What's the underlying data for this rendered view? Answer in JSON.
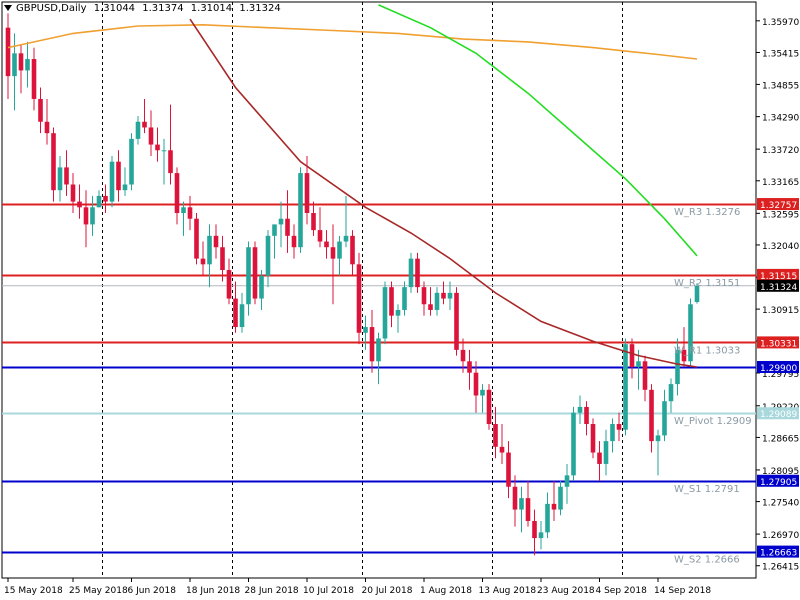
{
  "header": {
    "symbol": "GBPUSD,Daily",
    "ohlc": [
      "1.31044",
      "1.31374",
      "1.31014",
      "1.31324"
    ]
  },
  "chart_data": {
    "type": "candlestick",
    "ylim": [
      1.262,
      1.363
    ],
    "price_ticks": [
      "1.35970",
      "1.35415",
      "1.34855",
      "1.34290",
      "1.33720",
      "1.33165",
      "1.32595",
      "1.32040",
      "1.31475",
      "1.30915",
      "1.30355",
      "1.29795",
      "1.29220",
      "1.28665",
      "1.28095",
      "1.27540",
      "1.26970",
      "1.26415"
    ],
    "date_labels": [
      "15 May 2018",
      "25 May 2018",
      "6 Jun 2018",
      "18 Jun 2018",
      "28 Jun 2018",
      "10 Jul 2018",
      "20 Jul 2018",
      "1 Aug 2018",
      "13 Aug 2018",
      "23 Aug 2018",
      "4 Sep 2018",
      "14 Sep 2018"
    ],
    "date_label_bar": [
      0,
      10,
      19,
      28,
      37,
      46,
      55,
      64,
      73,
      82,
      91,
      100
    ],
    "week_separator_bars": [
      14.5,
      34.5,
      54.5,
      74.5,
      94.5
    ],
    "bull_color": "#26a69a",
    "bear_color": "#dc143c",
    "candles": [
      [
        1.3585,
        1.361,
        1.346,
        1.35
      ],
      [
        1.35,
        1.3575,
        1.344,
        1.354
      ],
      [
        1.354,
        1.3555,
        1.347,
        1.351
      ],
      [
        1.351,
        1.356,
        1.348,
        1.353
      ],
      [
        1.353,
        1.355,
        1.344,
        1.346
      ],
      [
        1.346,
        1.348,
        1.34,
        1.342
      ],
      [
        1.342,
        1.346,
        1.338,
        1.34
      ],
      [
        1.34,
        1.341,
        1.328,
        1.33
      ],
      [
        1.33,
        1.336,
        1.328,
        1.334
      ],
      [
        1.334,
        1.337,
        1.329,
        1.331
      ],
      [
        1.331,
        1.333,
        1.326,
        1.328
      ],
      [
        1.328,
        1.331,
        1.325,
        1.327
      ],
      [
        1.327,
        1.33,
        1.32,
        1.324
      ],
      [
        1.324,
        1.329,
        1.322,
        1.327
      ],
      [
        1.327,
        1.33,
        1.327,
        1.329
      ],
      [
        1.329,
        1.331,
        1.326,
        1.328
      ],
      [
        1.328,
        1.336,
        1.327,
        1.335
      ],
      [
        1.335,
        1.337,
        1.328,
        1.33
      ],
      [
        1.33,
        1.334,
        1.329,
        1.331
      ],
      [
        1.331,
        1.34,
        1.33,
        1.339
      ],
      [
        1.339,
        1.343,
        1.338,
        1.342
      ],
      [
        1.342,
        1.346,
        1.34,
        1.341
      ],
      [
        1.341,
        1.344,
        1.336,
        1.338
      ],
      [
        1.338,
        1.341,
        1.335,
        1.337
      ],
      [
        1.337,
        1.339,
        1.331,
        1.337
      ],
      [
        1.337,
        1.345,
        1.331,
        1.333
      ],
      [
        1.333,
        1.334,
        1.324,
        1.326
      ],
      [
        1.326,
        1.328,
        1.322,
        1.327
      ],
      [
        1.327,
        1.329,
        1.323,
        1.325
      ],
      [
        1.325,
        1.326,
        1.317,
        1.318
      ],
      [
        1.318,
        1.321,
        1.315,
        1.317
      ],
      [
        1.317,
        1.324,
        1.313,
        1.322
      ],
      [
        1.322,
        1.324,
        1.318,
        1.32
      ],
      [
        1.32,
        1.322,
        1.314,
        1.316
      ],
      [
        1.316,
        1.318,
        1.31,
        1.311
      ],
      [
        1.311,
        1.314,
        1.305,
        1.306
      ],
      [
        1.306,
        1.312,
        1.305,
        1.31
      ],
      [
        1.31,
        1.321,
        1.308,
        1.32
      ],
      [
        1.32,
        1.321,
        1.31,
        1.311
      ],
      [
        1.311,
        1.316,
        1.309,
        1.315
      ],
      [
        1.315,
        1.323,
        1.313,
        1.322
      ],
      [
        1.322,
        1.324,
        1.318,
        1.324
      ],
      [
        1.324,
        1.328,
        1.32,
        1.325
      ],
      [
        1.325,
        1.33,
        1.319,
        1.322
      ],
      [
        1.322,
        1.324,
        1.318,
        1.32
      ],
      [
        1.32,
        1.334,
        1.319,
        1.333
      ],
      [
        1.333,
        1.336,
        1.324,
        1.326
      ],
      [
        1.326,
        1.328,
        1.322,
        1.323
      ],
      [
        1.323,
        1.327,
        1.32,
        1.321
      ],
      [
        1.321,
        1.323,
        1.318,
        1.32
      ],
      [
        1.32,
        1.324,
        1.31,
        1.318
      ],
      [
        1.318,
        1.322,
        1.315,
        1.321
      ],
      [
        1.321,
        1.329,
        1.32,
        1.322
      ],
      [
        1.322,
        1.323,
        1.315,
        1.317
      ],
      [
        1.317,
        1.319,
        1.303,
        1.305
      ],
      [
        1.305,
        1.308,
        1.302,
        1.306
      ],
      [
        1.306,
        1.309,
        1.298,
        1.3
      ],
      [
        1.3,
        1.305,
        1.296,
        1.304
      ],
      [
        1.304,
        1.314,
        1.303,
        1.313
      ],
      [
        1.313,
        1.314,
        1.306,
        1.308
      ],
      [
        1.308,
        1.31,
        1.305,
        1.309
      ],
      [
        1.309,
        1.314,
        1.308,
        1.313
      ],
      [
        1.313,
        1.319,
        1.312,
        1.318
      ],
      [
        1.318,
        1.319,
        1.312,
        1.313
      ],
      [
        1.313,
        1.314,
        1.308,
        1.31
      ],
      [
        1.31,
        1.313,
        1.308,
        1.309
      ],
      [
        1.309,
        1.313,
        1.308,
        1.312
      ],
      [
        1.312,
        1.314,
        1.31,
        1.311
      ],
      [
        1.311,
        1.314,
        1.309,
        1.312
      ],
      [
        1.312,
        1.313,
        1.301,
        1.302
      ],
      [
        1.302,
        1.304,
        1.298,
        1.3
      ],
      [
        1.3,
        1.302,
        1.295,
        1.298
      ],
      [
        1.298,
        1.3,
        1.291,
        1.294
      ],
      [
        1.294,
        1.296,
        1.291,
        1.295
      ],
      [
        1.295,
        1.296,
        1.288,
        1.289
      ],
      [
        1.289,
        1.292,
        1.283,
        1.285
      ],
      [
        1.285,
        1.289,
        1.282,
        1.284
      ],
      [
        1.284,
        1.286,
        1.276,
        1.278
      ],
      [
        1.278,
        1.28,
        1.271,
        1.274
      ],
      [
        1.274,
        1.278,
        1.27,
        1.276
      ],
      [
        1.276,
        1.279,
        1.271,
        1.272
      ],
      [
        1.272,
        1.274,
        1.266,
        1.269
      ],
      [
        1.269,
        1.272,
        1.267,
        1.27
      ],
      [
        1.27,
        1.277,
        1.269,
        1.275
      ],
      [
        1.275,
        1.279,
        1.272,
        1.274
      ],
      [
        1.274,
        1.279,
        1.273,
        1.278
      ],
      [
        1.278,
        1.282,
        1.275,
        1.28
      ],
      [
        1.28,
        1.292,
        1.279,
        1.291
      ],
      [
        1.291,
        1.294,
        1.289,
        1.292
      ],
      [
        1.292,
        1.293,
        1.287,
        1.289
      ],
      [
        1.289,
        1.29,
        1.283,
        1.284
      ],
      [
        1.284,
        1.286,
        1.279,
        1.282
      ],
      [
        1.282,
        1.288,
        1.28,
        1.286
      ],
      [
        1.286,
        1.29,
        1.284,
        1.289
      ],
      [
        1.289,
        1.291,
        1.286,
        1.288
      ],
      [
        1.288,
        1.304,
        1.287,
        1.303
      ],
      [
        1.303,
        1.304,
        1.297,
        1.299
      ],
      [
        1.299,
        1.302,
        1.295,
        1.3
      ],
      [
        1.3,
        1.301,
        1.293,
        1.295
      ],
      [
        1.295,
        1.296,
        1.284,
        1.286
      ],
      [
        1.286,
        1.288,
        1.28,
        1.287
      ],
      [
        1.287,
        1.295,
        1.286,
        1.293
      ],
      [
        1.293,
        1.297,
        1.291,
        1.296
      ],
      [
        1.296,
        1.304,
        1.294,
        1.302
      ],
      [
        1.302,
        1.306,
        1.299,
        1.3
      ],
      [
        1.3,
        1.311,
        1.299,
        1.31
      ],
      [
        1.3104,
        1.3137,
        1.3101,
        1.3132
      ]
    ],
    "ma_orange": [
      [
        0,
        1.355
      ],
      [
        10,
        1.3575
      ],
      [
        20,
        1.3588
      ],
      [
        30,
        1.359
      ],
      [
        40,
        1.3585
      ],
      [
        50,
        1.358
      ],
      [
        60,
        1.3575
      ],
      [
        70,
        1.3565
      ],
      [
        80,
        1.356
      ],
      [
        90,
        1.355
      ],
      [
        100,
        1.3538
      ],
      [
        106,
        1.353
      ]
    ],
    "ma_green": [
      [
        57,
        1.3625
      ],
      [
        65,
        1.3585
      ],
      [
        72,
        1.354
      ],
      [
        80,
        1.347
      ],
      [
        88,
        1.339
      ],
      [
        95,
        1.332
      ],
      [
        101,
        1.325
      ],
      [
        106,
        1.3185
      ]
    ],
    "ma_darkred": [
      [
        28,
        1.36
      ],
      [
        35,
        1.348
      ],
      [
        45,
        1.335
      ],
      [
        55,
        1.327
      ],
      [
        62,
        1.3225
      ],
      [
        68,
        1.318
      ],
      [
        75,
        1.312
      ],
      [
        82,
        1.307
      ],
      [
        90,
        1.3035
      ],
      [
        97,
        1.301
      ],
      [
        103,
        1.2995
      ],
      [
        106,
        1.299
      ]
    ],
    "hlines": [
      {
        "value": 1.32757,
        "color": "#dc2020",
        "label": "1.32757",
        "text": "W_R3 1.3276"
      },
      {
        "value": 1.31515,
        "color": "#dc2020",
        "label": "1.31515",
        "text": "W_R2 1.3151"
      },
      {
        "value": 1.30331,
        "color": "#dc2020",
        "label": "1.30331",
        "text": "W_R1 1.3033"
      },
      {
        "value": 1.299,
        "color": "#0000cc",
        "label": "1.29900",
        "text": ""
      },
      {
        "value": 1.29089,
        "color": "#a8d8dc",
        "label": "1.29089",
        "text": "W_Pivot 1.2909"
      },
      {
        "value": 1.27905,
        "color": "#0000cc",
        "label": "1.27905",
        "text": "W_S1 1.2791"
      },
      {
        "value": 1.26663,
        "color": "#0000cc",
        "label": "1.26663",
        "text": "W_S2 1.2666"
      }
    ],
    "current_price": {
      "value": 1.31324,
      "label": "1.31324"
    }
  }
}
